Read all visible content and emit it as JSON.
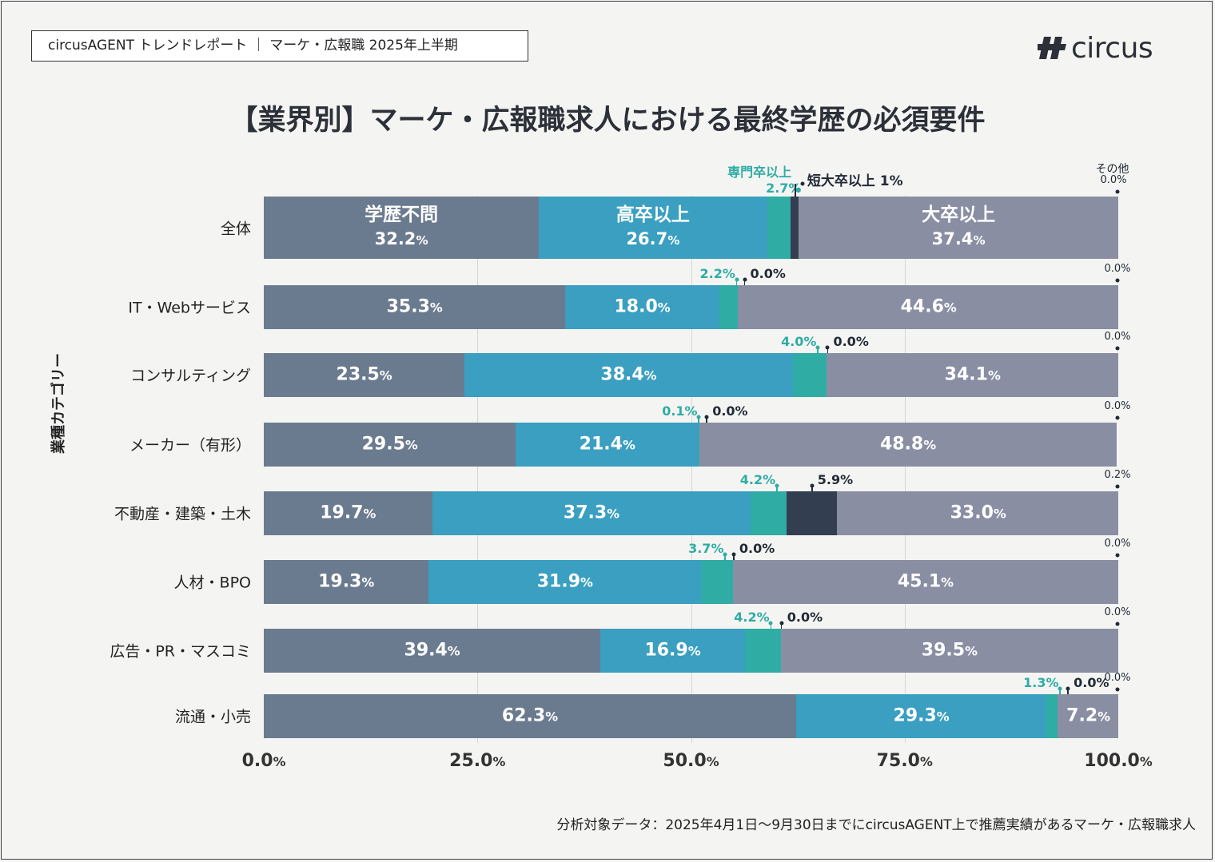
{
  "header": {
    "report_label": "circusAGENT トレンドレポート ｜ マーケ・広報職 2025年上半期",
    "logo_text": "circus",
    "logo_icon": "circus-logo-icon"
  },
  "footnote": "分析対象データ：2025年4月1日〜9月30日までにcircusAGENT上で推薦実績があるマーケ・広報職求人",
  "colors": {
    "学歴不問": "#6b7b8f",
    "高卒以上": "#3a9fc0",
    "専門卒以上": "#2faca4",
    "短大卒以上": "#333e50",
    "大卒以上": "#8a8ea3",
    "その他": "#222222",
    "accent_teal_text": "#2faca4",
    "dark_text": "#222a36"
  },
  "chart_data": {
    "type": "bar",
    "orientation": "horizontal-stacked",
    "title": "【業界別】マーケ・広報職求人における最終学歴の必須要件",
    "ylabel": "業種カテゴリー",
    "xlabel": "",
    "xlim": [
      0,
      100
    ],
    "xticks": [
      "0.0",
      "25.0",
      "50.0",
      "75.0",
      "100.0"
    ],
    "percent_symbol": "%",
    "legend_labels": {
      "学歴不問": "学歴不問",
      "高卒以上": "高卒以上",
      "専門卒以上": "専門卒以上",
      "短大卒以上": "短大卒以上 1%",
      "大卒以上": "大卒以上",
      "その他": "その他"
    },
    "categories": [
      "全体",
      "IT・Webサービス",
      "コンサルティング",
      "メーカー（有形）",
      "不動産・建築・土木",
      "人材・BPO",
      "広告・PR・マスコミ",
      "流通・小売"
    ],
    "series": [
      {
        "name": "学歴不問",
        "values": [
          32.2,
          35.3,
          23.5,
          29.5,
          19.7,
          19.3,
          39.4,
          62.3
        ],
        "labels": [
          "32.2",
          "35.3",
          "23.5",
          "29.5",
          "19.7",
          "19.3",
          "39.4",
          "62.3"
        ]
      },
      {
        "name": "高卒以上",
        "values": [
          26.7,
          18.0,
          38.4,
          21.4,
          37.3,
          31.9,
          16.9,
          29.3
        ],
        "labels": [
          "26.7",
          "18.0",
          "38.4",
          "21.4",
          "37.3",
          "31.9",
          "16.9",
          "29.3"
        ]
      },
      {
        "name": "専門卒以上",
        "values": [
          2.7,
          2.2,
          4.0,
          0.1,
          4.2,
          3.7,
          4.2,
          1.3
        ],
        "labels": [
          "2.7",
          "2.2",
          "4.0",
          "0.1",
          "4.2",
          "3.7",
          "4.2",
          "1.3"
        ]
      },
      {
        "name": "短大卒以上",
        "values": [
          1.0,
          0.0,
          0.0,
          0.0,
          5.9,
          0.0,
          0.0,
          0.0
        ],
        "labels": [
          "",
          "0.0",
          "0.0",
          "0.0",
          "5.9",
          "0.0",
          "0.0",
          "0.0"
        ]
      },
      {
        "name": "大卒以上",
        "values": [
          37.4,
          44.6,
          34.1,
          48.8,
          33.0,
          45.1,
          39.5,
          7.2
        ],
        "labels": [
          "37.4",
          "44.6",
          "34.1",
          "48.8",
          "33.0",
          "45.1",
          "39.5",
          "7.2"
        ]
      },
      {
        "name": "その他",
        "values": [
          0.0,
          0.0,
          0.0,
          0.0,
          0.2,
          0.0,
          0.0,
          0.0
        ],
        "labels": [
          "0.0",
          "0.0",
          "0.0",
          "0.0",
          "0.2",
          "0.0",
          "0.0",
          "0.0"
        ]
      }
    ]
  }
}
